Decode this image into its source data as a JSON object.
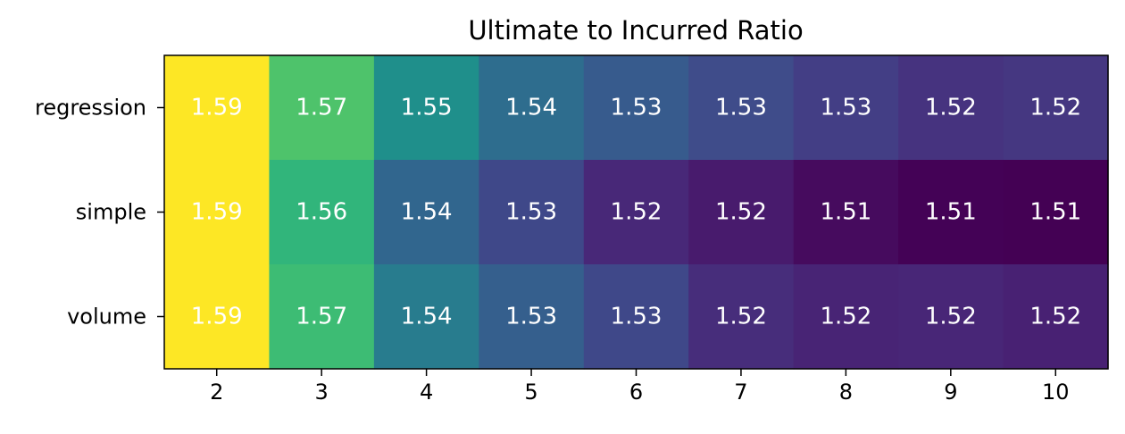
{
  "chart_data": {
    "type": "heatmap",
    "title": "Ultimate to Incurred Ratio",
    "xlabel": "",
    "ylabel": "",
    "x": [
      "2",
      "3",
      "4",
      "5",
      "6",
      "7",
      "8",
      "9",
      "10"
    ],
    "y": [
      "regression",
      "simple",
      "volume"
    ],
    "values": [
      [
        1.59,
        1.57,
        1.55,
        1.54,
        1.53,
        1.53,
        1.53,
        1.52,
        1.52
      ],
      [
        1.59,
        1.56,
        1.54,
        1.53,
        1.52,
        1.52,
        1.51,
        1.51,
        1.51
      ],
      [
        1.59,
        1.57,
        1.54,
        1.53,
        1.53,
        1.52,
        1.52,
        1.52,
        1.52
      ]
    ],
    "labels": [
      [
        "1.59",
        "1.57",
        "1.55",
        "1.54",
        "1.53",
        "1.53",
        "1.53",
        "1.52",
        "1.52"
      ],
      [
        "1.59",
        "1.56",
        "1.54",
        "1.53",
        "1.52",
        "1.52",
        "1.51",
        "1.51",
        "1.51"
      ],
      [
        "1.59",
        "1.57",
        "1.54",
        "1.53",
        "1.53",
        "1.52",
        "1.52",
        "1.52",
        "1.52"
      ]
    ],
    "colors": [
      [
        "#fde725",
        "#4ec36b",
        "#1f8f8b",
        "#2e6d8e",
        "#375b8d",
        "#3f4c8a",
        "#433e85",
        "#46337f",
        "#453781"
      ],
      [
        "#fde725",
        "#31b57b",
        "#31668e",
        "#3f4889",
        "#482878",
        "#481b6d",
        "#460b5e",
        "#440256",
        "#440154"
      ],
      [
        "#fde725",
        "#3dbc74",
        "#287c8e",
        "#355f8d",
        "#3f4889",
        "#472d7b",
        "#482475",
        "#482677",
        "#482173"
      ]
    ],
    "colormap": "viridis",
    "value_label_color": "#ffffff",
    "grid": false,
    "legend": "none"
  }
}
